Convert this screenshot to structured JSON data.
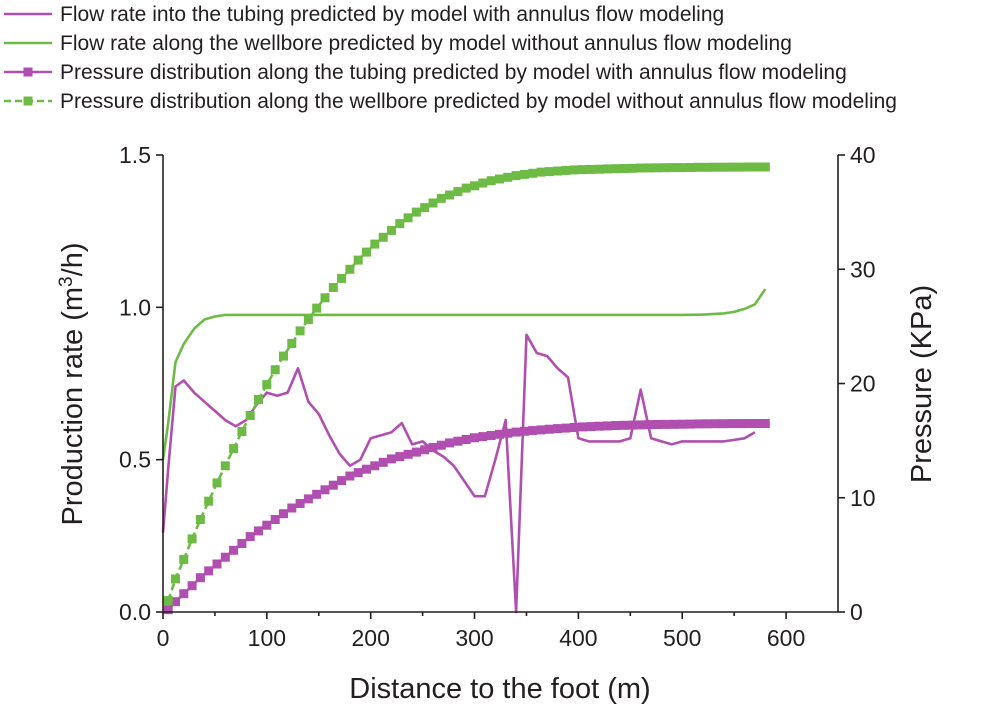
{
  "chart_data": {
    "type": "line",
    "title": "",
    "xlabel": "Distance to the foot (m)",
    "ylabel_left": "Production rate (m3/h)",
    "ylabel_left_prefix": "Production rate (m",
    "ylabel_left_sup": "3",
    "ylabel_left_suffix": "/h)",
    "ylabel_right": "Pressure (KPa)",
    "xlim": [
      0,
      650
    ],
    "ylim_left": [
      0,
      1.5
    ],
    "ylim_right": [
      0,
      40
    ],
    "x_ticks": [
      "0",
      "100",
      "200",
      "300",
      "400",
      "500",
      "600"
    ],
    "x_tick_values": [
      0,
      100,
      200,
      300,
      400,
      500,
      600
    ],
    "y_left_ticks": [
      "0.0",
      "0.5",
      "1.0",
      "1.5"
    ],
    "y_left_tick_values": [
      0,
      0.5,
      1.0,
      1.5
    ],
    "y_right_ticks": [
      "0",
      "10",
      "20",
      "30",
      "40"
    ],
    "y_right_tick_values": [
      0,
      10,
      20,
      30,
      40
    ],
    "legend_position": "top",
    "series": [
      {
        "name": "Flow rate into the tubing predicted by model with annulus flow modeling",
        "axis": "left",
        "color": "#b04fb0",
        "style": "line",
        "x": [
          0,
          5,
          12,
          20,
          30,
          40,
          50,
          60,
          70,
          80,
          90,
          100,
          110,
          120,
          130,
          140,
          150,
          160,
          170,
          180,
          190,
          200,
          210,
          220,
          230,
          240,
          250,
          260,
          270,
          280,
          290,
          300,
          310,
          320,
          330,
          340,
          350,
          360,
          370,
          380,
          390,
          400,
          410,
          420,
          430,
          440,
          450,
          460,
          470,
          480,
          490,
          500,
          510,
          520,
          530,
          540,
          550,
          560,
          570
        ],
        "y": [
          0.26,
          0.47,
          0.74,
          0.76,
          0.72,
          0.69,
          0.66,
          0.63,
          0.61,
          0.63,
          0.68,
          0.72,
          0.71,
          0.72,
          0.8,
          0.69,
          0.65,
          0.58,
          0.52,
          0.48,
          0.5,
          0.57,
          0.58,
          0.59,
          0.62,
          0.55,
          0.56,
          0.53,
          0.51,
          0.48,
          0.43,
          0.38,
          0.38,
          0.5,
          0.63,
          0.0,
          0.91,
          0.85,
          0.84,
          0.8,
          0.77,
          0.57,
          0.56,
          0.56,
          0.56,
          0.56,
          0.57,
          0.73,
          0.57,
          0.56,
          0.55,
          0.56,
          0.56,
          0.56,
          0.56,
          0.56,
          0.565,
          0.57,
          0.59
        ]
      },
      {
        "name": "Flow rate along the wellbore predicted by model without annulus flow modeling",
        "axis": "left",
        "color": "#6dbb45",
        "style": "line",
        "x": [
          0,
          5,
          12,
          20,
          30,
          40,
          50,
          60,
          80,
          100,
          150,
          200,
          300,
          400,
          500,
          520,
          540,
          550,
          560,
          570,
          580
        ],
        "y": [
          0.5,
          0.62,
          0.82,
          0.88,
          0.93,
          0.96,
          0.97,
          0.975,
          0.975,
          0.975,
          0.975,
          0.975,
          0.975,
          0.975,
          0.975,
          0.976,
          0.98,
          0.985,
          0.995,
          1.01,
          1.06
        ]
      },
      {
        "name": "Pressure distribution along the tubing predicted by model with annulus flow modeling",
        "axis": "right",
        "color": "#b04fb0",
        "style": "line-square",
        "x": [
          5,
          12,
          20,
          28,
          36,
          44,
          52,
          60,
          68,
          76,
          84,
          92,
          100,
          108,
          116,
          124,
          132,
          140,
          148,
          156,
          164,
          172,
          180,
          188,
          196,
          204,
          212,
          220,
          228,
          236,
          244,
          252,
          260,
          268,
          276,
          284,
          292,
          300,
          308,
          316,
          324,
          332,
          340,
          348,
          356,
          364,
          372,
          380,
          388,
          396,
          404,
          412,
          420,
          428,
          436,
          444,
          452,
          460,
          468,
          476,
          484,
          492,
          500,
          508,
          516,
          524,
          532,
          540,
          548,
          556,
          564,
          572,
          580
        ],
        "y": [
          0.2,
          0.9,
          1.6,
          2.3,
          3.0,
          3.6,
          4.2,
          4.8,
          5.4,
          6.0,
          6.6,
          7.1,
          7.6,
          8.1,
          8.6,
          9.1,
          9.5,
          9.9,
          10.3,
          10.7,
          11.1,
          11.5,
          11.9,
          12.2,
          12.5,
          12.8,
          13.1,
          13.4,
          13.6,
          13.8,
          14.0,
          14.2,
          14.4,
          14.6,
          14.8,
          14.95,
          15.1,
          15.25,
          15.35,
          15.45,
          15.55,
          15.65,
          15.75,
          15.82,
          15.88,
          15.94,
          16.0,
          16.05,
          16.1,
          16.15,
          16.2,
          16.23,
          16.26,
          16.29,
          16.32,
          16.34,
          16.36,
          16.38,
          16.4,
          16.41,
          16.42,
          16.43,
          16.44,
          16.45,
          16.46,
          16.47,
          16.48,
          16.48,
          16.49,
          16.49,
          16.5,
          16.5,
          16.5
        ]
      },
      {
        "name": "Pressure distribution along the wellbore predicted by model without annulus flow modeling",
        "axis": "right",
        "color": "#6dbb45",
        "style": "dashed-square",
        "x": [
          5,
          12,
          20,
          28,
          36,
          44,
          52,
          60,
          68,
          76,
          84,
          92,
          100,
          108,
          116,
          124,
          132,
          140,
          148,
          156,
          164,
          172,
          180,
          188,
          196,
          204,
          212,
          220,
          228,
          236,
          244,
          252,
          260,
          268,
          276,
          284,
          292,
          300,
          308,
          316,
          324,
          332,
          340,
          348,
          356,
          364,
          372,
          380,
          388,
          396,
          404,
          412,
          420,
          428,
          436,
          444,
          452,
          460,
          468,
          476,
          484,
          492,
          500,
          508,
          516,
          524,
          532,
          540,
          548,
          556,
          564,
          572,
          580
        ],
        "y": [
          1.0,
          2.9,
          4.6,
          6.4,
          8.1,
          9.7,
          11.3,
          12.8,
          14.3,
          15.8,
          17.2,
          18.6,
          19.9,
          21.2,
          22.4,
          23.5,
          24.6,
          25.6,
          26.6,
          27.5,
          28.4,
          29.2,
          30.0,
          30.8,
          31.5,
          32.2,
          32.8,
          33.4,
          34.0,
          34.5,
          35.0,
          35.4,
          35.8,
          36.2,
          36.5,
          36.8,
          37.1,
          37.3,
          37.55,
          37.75,
          37.9,
          38.05,
          38.2,
          38.3,
          38.4,
          38.5,
          38.55,
          38.6,
          38.65,
          38.7,
          38.72,
          38.74,
          38.76,
          38.78,
          38.8,
          38.82,
          38.84,
          38.86,
          38.87,
          38.88,
          38.89,
          38.9,
          38.9,
          38.91,
          38.92,
          38.92,
          38.93,
          38.93,
          38.94,
          38.94,
          38.95,
          38.95,
          38.95
        ]
      }
    ]
  }
}
